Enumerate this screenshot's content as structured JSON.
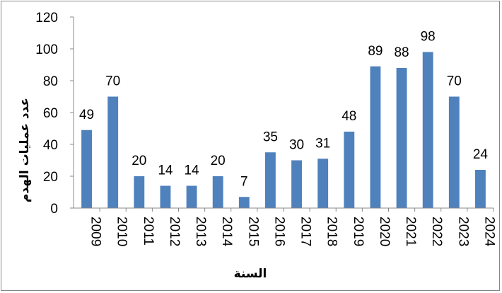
{
  "chart_data": {
    "type": "bar",
    "title": "",
    "xlabel": "السنة",
    "ylabel": "عدد عمليات الهدم",
    "categories": [
      "2009",
      "2010",
      "2011",
      "2012",
      "2013",
      "2014",
      "2015",
      "2016",
      "2017",
      "2018",
      "2019",
      "2020",
      "2021",
      "2022",
      "2023",
      "2024"
    ],
    "values": [
      49,
      70,
      20,
      14,
      14,
      20,
      7,
      35,
      30,
      31,
      48,
      89,
      88,
      98,
      70,
      24
    ],
    "yticks": [
      0,
      20,
      40,
      60,
      80,
      100,
      120
    ],
    "ylim": [
      0,
      120
    ],
    "grid": false,
    "legend": "none",
    "bar_color": "#4f81bd"
  }
}
